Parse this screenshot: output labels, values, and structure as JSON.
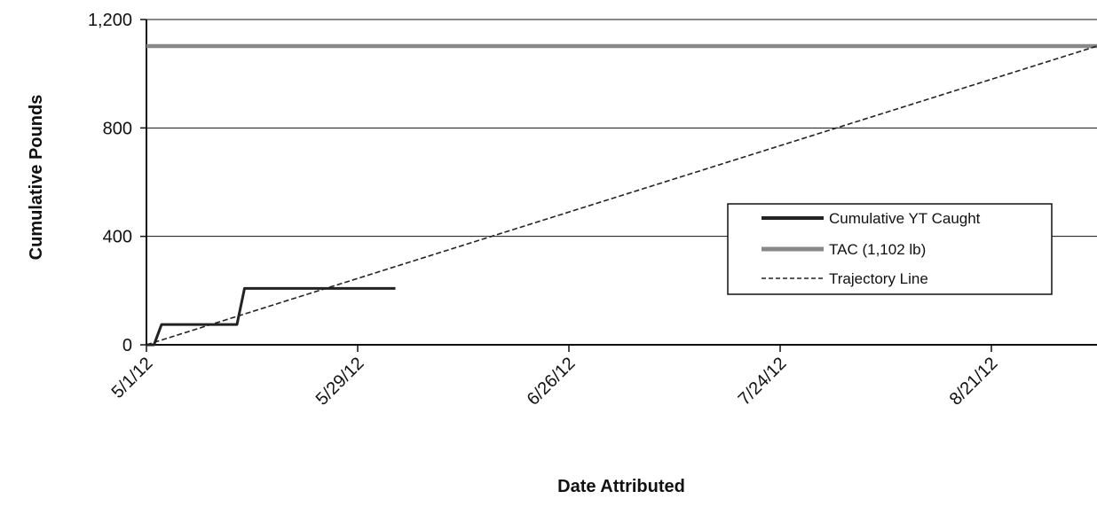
{
  "chart_data": {
    "type": "line",
    "title": "",
    "xlabel": "Date Attributed",
    "ylabel": "Cumulative Pounds",
    "x_axis": {
      "type": "date",
      "range": [
        "2012-05-01",
        "2012-09-04"
      ],
      "ticks": [
        {
          "date": "2012-05-01",
          "label": "5/1/12"
        },
        {
          "date": "2012-05-29",
          "label": "5/29/12"
        },
        {
          "date": "2012-06-26",
          "label": "6/26/12"
        },
        {
          "date": "2012-07-24",
          "label": "7/24/12"
        },
        {
          "date": "2012-08-21",
          "label": "8/21/12"
        }
      ]
    },
    "y_axis": {
      "range": [
        0,
        1200
      ],
      "ticks": [
        {
          "value": 0,
          "label": "0"
        },
        {
          "value": 400,
          "label": "400"
        },
        {
          "value": 800,
          "label": "800"
        },
        {
          "value": 1200,
          "label": "1,200"
        }
      ]
    },
    "grid": "horizontal",
    "legend": {
      "position": "right"
    },
    "series": [
      {
        "name": "Cumulative YT Caught",
        "color": "#222222",
        "style": "solid",
        "points": [
          {
            "x": "2012-05-01",
            "y": 0
          },
          {
            "x": "2012-05-02",
            "y": 0
          },
          {
            "x": "2012-05-03",
            "y": 75
          },
          {
            "x": "2012-05-13",
            "y": 75
          },
          {
            "x": "2012-05-14",
            "y": 208
          },
          {
            "x": "2012-06-03",
            "y": 208
          }
        ]
      },
      {
        "name": "TAC (1,102 lb)",
        "color": "#888888",
        "style": "thick",
        "points": [
          {
            "x": "2012-05-01",
            "y": 1102
          },
          {
            "x": "2012-09-04",
            "y": 1102
          }
        ]
      },
      {
        "name": "Trajectory Line",
        "color": "#222222",
        "style": "dashed",
        "points": [
          {
            "x": "2012-05-01",
            "y": 0
          },
          {
            "x": "2012-09-04",
            "y": 1102
          }
        ]
      }
    ]
  }
}
